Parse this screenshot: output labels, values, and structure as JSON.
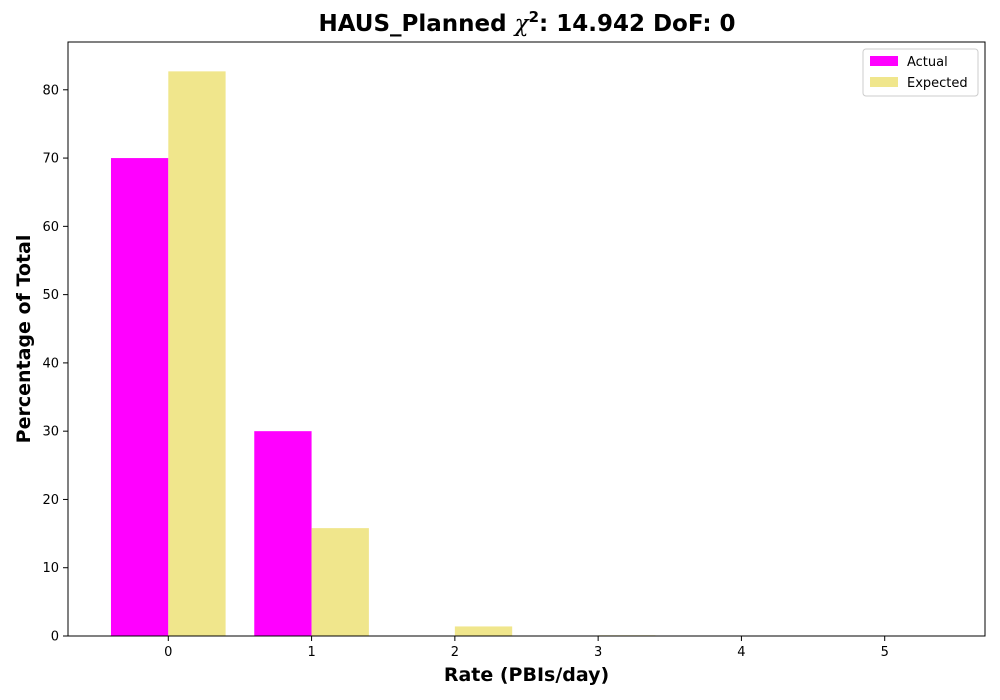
{
  "chart_data": {
    "type": "bar",
    "title_prefix": "HAUS_Planned ",
    "title_symbol": "χ",
    "title_superscript": "2",
    "title_suffix": ": 14.942 DoF: 0",
    "xlabel": "Rate (PBIs/day)",
    "ylabel": "Percentage of Total",
    "categories": [
      "0",
      "1",
      "2",
      "3",
      "4",
      "5"
    ],
    "x": [
      0,
      1,
      2,
      3,
      4,
      5
    ],
    "xlim": [
      -0.7,
      5.7
    ],
    "ylim": [
      0,
      87
    ],
    "yticks": [
      0,
      10,
      20,
      30,
      40,
      50,
      60,
      70,
      80
    ],
    "grid": false,
    "legend_position": "top-right",
    "series": [
      {
        "name": "Actual",
        "color": "#ff00ff",
        "values": [
          70.0,
          30.0,
          0,
          0,
          0,
          0
        ]
      },
      {
        "name": "Expected",
        "color": "#f0e68c",
        "values": [
          82.7,
          15.8,
          1.4,
          0.1,
          0.0,
          0.0
        ]
      }
    ]
  }
}
